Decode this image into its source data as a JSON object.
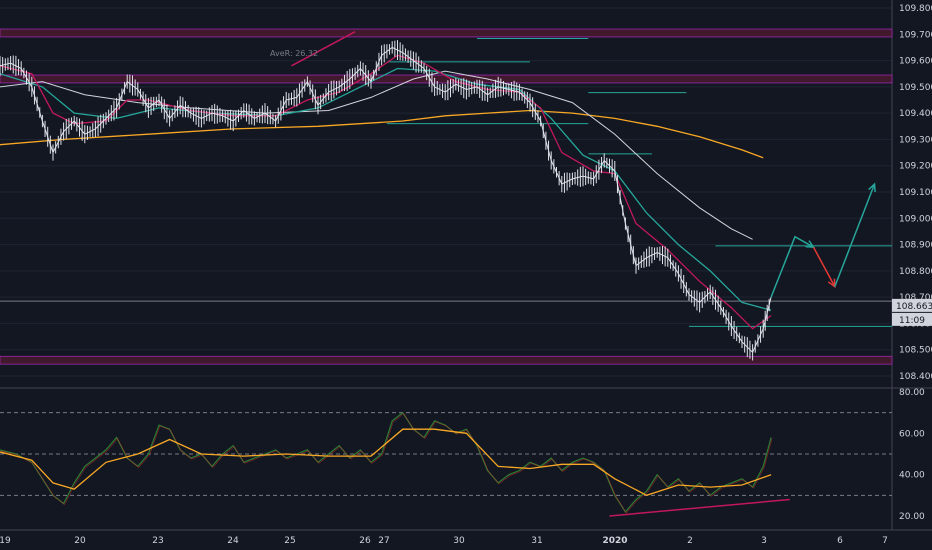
{
  "chart_data": [
    {
      "type": "candlestick",
      "ylim": [
        108.4,
        109.8
      ],
      "y_ticks": [
        "109.800",
        "109.700",
        "109.600",
        "109.500",
        "109.400",
        "109.300",
        "109.200",
        "109.100",
        "109.000",
        "108.900",
        "108.800",
        "108.700",
        "108.600",
        "108.500",
        "108.400"
      ],
      "x_ticks": [
        "19",
        "20",
        "23",
        "24",
        "25",
        "26",
        "27",
        "30",
        "31",
        "2020",
        "2",
        "3",
        "6",
        "7"
      ],
      "last_price_label": "108.663",
      "countdown_label": "11:09",
      "annotation": "AveR: 26.32",
      "price_path": [
        [
          0,
          109.58
        ],
        [
          4,
          109.59
        ],
        [
          8,
          109.57
        ],
        [
          12,
          109.5
        ],
        [
          16,
          109.37
        ],
        [
          20,
          109.25
        ],
        [
          24,
          109.33
        ],
        [
          28,
          109.37
        ],
        [
          32,
          109.32
        ],
        [
          36,
          109.34
        ],
        [
          40,
          109.38
        ],
        [
          44,
          109.42
        ],
        [
          48,
          109.52
        ],
        [
          52,
          109.49
        ],
        [
          56,
          109.42
        ],
        [
          60,
          109.45
        ],
        [
          64,
          109.38
        ],
        [
          68,
          109.43
        ],
        [
          72,
          109.4
        ],
        [
          76,
          109.38
        ],
        [
          80,
          109.4
        ],
        [
          84,
          109.39
        ],
        [
          88,
          109.37
        ],
        [
          92,
          109.41
        ],
        [
          96,
          109.38
        ],
        [
          100,
          109.4
        ],
        [
          104,
          109.37
        ],
        [
          108,
          109.45
        ],
        [
          112,
          109.46
        ],
        [
          116,
          109.52
        ],
        [
          120,
          109.43
        ],
        [
          124,
          109.48
        ],
        [
          128,
          109.5
        ],
        [
          132,
          109.53
        ],
        [
          136,
          109.57
        ],
        [
          140,
          109.52
        ],
        [
          144,
          109.62
        ],
        [
          148,
          109.65
        ],
        [
          152,
          109.63
        ],
        [
          156,
          109.6
        ],
        [
          160,
          109.57
        ],
        [
          164,
          109.5
        ],
        [
          168,
          109.48
        ],
        [
          172,
          109.51
        ],
        [
          176,
          109.49
        ],
        [
          180,
          109.5
        ],
        [
          184,
          109.47
        ],
        [
          188,
          109.5
        ],
        [
          192,
          109.49
        ],
        [
          196,
          109.48
        ],
        [
          200,
          109.44
        ],
        [
          204,
          109.37
        ],
        [
          208,
          109.22
        ],
        [
          212,
          109.13
        ],
        [
          216,
          109.15
        ],
        [
          220,
          109.16
        ],
        [
          224,
          109.15
        ],
        [
          228,
          109.22
        ],
        [
          232,
          109.18
        ],
        [
          236,
          108.98
        ],
        [
          240,
          108.82
        ],
        [
          244,
          108.85
        ],
        [
          248,
          108.87
        ],
        [
          252,
          108.85
        ],
        [
          256,
          108.79
        ],
        [
          260,
          108.71
        ],
        [
          264,
          108.68
        ],
        [
          268,
          108.72
        ],
        [
          272,
          108.66
        ],
        [
          276,
          108.59
        ],
        [
          280,
          108.53
        ],
        [
          284,
          108.49
        ],
        [
          288,
          108.58
        ],
        [
          291,
          108.7
        ]
      ],
      "ema_fast": [
        [
          0,
          109.58
        ],
        [
          12,
          109.55
        ],
        [
          20,
          109.4
        ],
        [
          28,
          109.36
        ],
        [
          40,
          109.37
        ],
        [
          48,
          109.45
        ],
        [
          56,
          109.45
        ],
        [
          72,
          109.41
        ],
        [
          88,
          109.39
        ],
        [
          104,
          109.39
        ],
        [
          116,
          109.45
        ],
        [
          128,
          109.48
        ],
        [
          140,
          109.55
        ],
        [
          150,
          109.62
        ],
        [
          160,
          109.59
        ],
        [
          172,
          109.52
        ],
        [
          184,
          109.49
        ],
        [
          196,
          109.48
        ],
        [
          204,
          109.42
        ],
        [
          212,
          109.25
        ],
        [
          224,
          109.18
        ],
        [
          232,
          109.17
        ],
        [
          240,
          108.98
        ],
        [
          252,
          108.88
        ],
        [
          264,
          108.76
        ],
        [
          276,
          108.66
        ],
        [
          284,
          108.58
        ],
        [
          291,
          108.63
        ]
      ],
      "ema_mid": [
        [
          0,
          109.55
        ],
        [
          16,
          109.5
        ],
        [
          28,
          109.4
        ],
        [
          44,
          109.38
        ],
        [
          60,
          109.42
        ],
        [
          80,
          109.4
        ],
        [
          104,
          109.39
        ],
        [
          120,
          109.42
        ],
        [
          136,
          109.5
        ],
        [
          150,
          109.57
        ],
        [
          164,
          109.56
        ],
        [
          180,
          109.51
        ],
        [
          196,
          109.49
        ],
        [
          208,
          109.38
        ],
        [
          220,
          109.24
        ],
        [
          232,
          109.18
        ],
        [
          244,
          109.02
        ],
        [
          256,
          108.9
        ],
        [
          268,
          108.8
        ],
        [
          280,
          108.68
        ],
        [
          291,
          108.65
        ]
      ],
      "sma_long": [
        [
          0,
          109.5
        ],
        [
          16,
          109.52
        ],
        [
          32,
          109.47
        ],
        [
          52,
          109.44
        ],
        [
          72,
          109.42
        ],
        [
          100,
          109.4
        ],
        [
          124,
          109.41
        ],
        [
          140,
          109.46
        ],
        [
          156,
          109.53
        ],
        [
          168,
          109.56
        ],
        [
          184,
          109.53
        ],
        [
          200,
          109.49
        ],
        [
          216,
          109.44
        ],
        [
          232,
          109.32
        ],
        [
          248,
          109.17
        ],
        [
          264,
          109.04
        ],
        [
          276,
          108.96
        ],
        [
          284,
          108.92
        ]
      ],
      "sma_200": [
        [
          0,
          109.28
        ],
        [
          24,
          109.3
        ],
        [
          56,
          109.32
        ],
        [
          88,
          109.34
        ],
        [
          120,
          109.35
        ],
        [
          152,
          109.37
        ],
        [
          168,
          109.39
        ],
        [
          184,
          109.4
        ],
        [
          200,
          109.41
        ],
        [
          216,
          109.4
        ],
        [
          232,
          109.38
        ],
        [
          248,
          109.35
        ],
        [
          264,
          109.31
        ],
        [
          280,
          109.26
        ],
        [
          288,
          109.23
        ]
      ],
      "h_zones": [
        [
          109.69,
          109.72
        ],
        [
          109.515,
          109.545
        ],
        [
          108.445,
          108.475
        ]
      ],
      "h_lines": [
        {
          "y": 109.684,
          "x0": 180,
          "x1": 222
        },
        {
          "y": 109.595,
          "x0": 146,
          "x1": 200
        },
        {
          "y": 109.478,
          "x0": 222,
          "x1": 259
        },
        {
          "y": 109.36,
          "x0": 146,
          "x1": 222
        },
        {
          "y": 109.245,
          "x0": 222,
          "x1": 246
        },
        {
          "y": 108.895,
          "x0": 270,
          "x1": 450
        },
        {
          "y": 108.589,
          "x0": 260,
          "x1": 450
        },
        {
          "y": 108.685,
          "x0": 0,
          "x1": 450
        }
      ],
      "projection_up": [
        [
          291,
          108.7
        ],
        [
          300,
          108.93
        ],
        [
          307,
          108.89
        ]
      ],
      "projection_down": [
        [
          307,
          108.89
        ],
        [
          315,
          108.74
        ]
      ],
      "projection_up2": [
        [
          315,
          108.74
        ],
        [
          330,
          109.13
        ]
      ]
    },
    {
      "type": "line",
      "ylim": [
        15,
        80
      ],
      "y_ticks": [
        "80.00",
        "60.00",
        "40.00",
        "20.00"
      ],
      "levels": [
        70,
        50,
        30
      ],
      "rsi": [
        [
          0,
          52
        ],
        [
          6,
          50
        ],
        [
          12,
          46
        ],
        [
          16,
          38
        ],
        [
          20,
          30
        ],
        [
          24,
          26
        ],
        [
          28,
          36
        ],
        [
          32,
          44
        ],
        [
          36,
          48
        ],
        [
          40,
          52
        ],
        [
          44,
          58
        ],
        [
          48,
          48
        ],
        [
          52,
          44
        ],
        [
          56,
          50
        ],
        [
          60,
          64
        ],
        [
          64,
          62
        ],
        [
          68,
          52
        ],
        [
          72,
          48
        ],
        [
          76,
          50
        ],
        [
          80,
          44
        ],
        [
          84,
          50
        ],
        [
          88,
          54
        ],
        [
          92,
          46
        ],
        [
          96,
          48
        ],
        [
          100,
          50
        ],
        [
          104,
          52
        ],
        [
          108,
          48
        ],
        [
          112,
          50
        ],
        [
          116,
          52
        ],
        [
          120,
          46
        ],
        [
          124,
          50
        ],
        [
          128,
          54
        ],
        [
          132,
          48
        ],
        [
          136,
          52
        ],
        [
          140,
          46
        ],
        [
          144,
          50
        ],
        [
          148,
          66
        ],
        [
          152,
          70
        ],
        [
          156,
          62
        ],
        [
          160,
          58
        ],
        [
          164,
          66
        ],
        [
          168,
          64
        ],
        [
          172,
          60
        ],
        [
          176,
          62
        ],
        [
          180,
          54
        ],
        [
          184,
          42
        ],
        [
          188,
          36
        ],
        [
          192,
          40
        ],
        [
          196,
          42
        ],
        [
          200,
          46
        ],
        [
          204,
          44
        ],
        [
          208,
          48
        ],
        [
          212,
          42
        ],
        [
          216,
          46
        ],
        [
          220,
          48
        ],
        [
          224,
          46
        ],
        [
          228,
          42
        ],
        [
          232,
          30
        ],
        [
          236,
          22
        ],
        [
          240,
          28
        ],
        [
          244,
          32
        ],
        [
          248,
          40
        ],
        [
          252,
          34
        ],
        [
          256,
          38
        ],
        [
          260,
          32
        ],
        [
          264,
          36
        ],
        [
          268,
          30
        ],
        [
          272,
          34
        ],
        [
          276,
          36
        ],
        [
          280,
          38
        ],
        [
          284,
          34
        ],
        [
          288,
          44
        ],
        [
          291,
          58
        ]
      ],
      "signal": [
        [
          0,
          51
        ],
        [
          12,
          47
        ],
        [
          20,
          36
        ],
        [
          28,
          33
        ],
        [
          40,
          46
        ],
        [
          52,
          50
        ],
        [
          64,
          57
        ],
        [
          76,
          50
        ],
        [
          92,
          49
        ],
        [
          108,
          50
        ],
        [
          124,
          49
        ],
        [
          140,
          49
        ],
        [
          152,
          62
        ],
        [
          164,
          62
        ],
        [
          176,
          60
        ],
        [
          188,
          44
        ],
        [
          200,
          43
        ],
        [
          212,
          45
        ],
        [
          224,
          45
        ],
        [
          232,
          38
        ],
        [
          244,
          30
        ],
        [
          256,
          35
        ],
        [
          268,
          34
        ],
        [
          280,
          35
        ],
        [
          291,
          40
        ]
      ],
      "divergence": [
        [
          230,
          20
        ],
        [
          298,
          28
        ]
      ]
    }
  ]
}
